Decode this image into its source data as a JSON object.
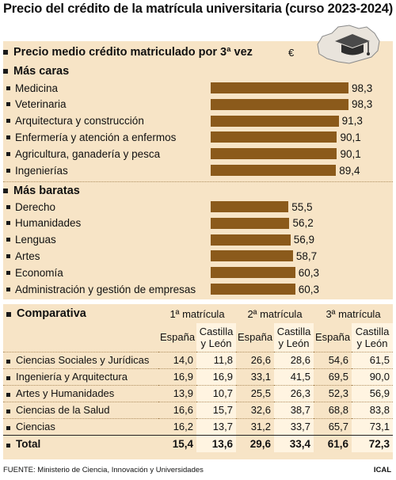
{
  "title": "Precio del crédito de la matrícula universitaria (curso 2023-2024)",
  "section_price": "Precio medio crédito matriculado por 3ª vez",
  "currency_symbol": "€",
  "group_expensive": "Más caras",
  "group_cheap": "Más baratas",
  "section_comparison": "Comparativa",
  "colors": {
    "panel": "#f7e4c6",
    "bar": "#8b5a1b",
    "highlight": "#fff4e1"
  },
  "chart_data": {
    "type": "bar",
    "orientation": "horizontal",
    "ylabel": "€",
    "xlim": [
      0,
      100
    ],
    "groups": [
      {
        "name": "Más caras",
        "categories": [
          "Medicina",
          "Veterinaria",
          "Arquitectura y construcción",
          "Enfermería y atención a enfermos",
          "Agricultura, ganadería y pesca",
          "Ingenierías"
        ],
        "values": [
          98.3,
          98.3,
          91.3,
          90.1,
          90.1,
          89.4
        ],
        "labels": [
          "98,3",
          "98,3",
          "91,3",
          "90,1",
          "90,1",
          "89,4"
        ]
      },
      {
        "name": "Más baratas",
        "categories": [
          "Derecho",
          "Humanidades",
          "Lenguas",
          "Artes",
          "Economía",
          "Administración y gestión de empresas"
        ],
        "values": [
          55.5,
          56.2,
          56.9,
          58.7,
          60.3,
          60.3
        ],
        "labels": [
          "55,5",
          "56,2",
          "56,9",
          "58,7",
          "60,3",
          "60,3"
        ]
      }
    ]
  },
  "comparison": {
    "periods": [
      "1ª matrícula",
      "2ª matrícula",
      "3ª matrícula"
    ],
    "col_spain": "España",
    "col_cyl_line1": "Castilla",
    "col_cyl_line2": "y León",
    "rows": [
      {
        "label": "Ciencias Sociales y Jurídicas",
        "values": [
          "14,0",
          "11,8",
          "26,6",
          "28,6",
          "54,6",
          "61,5"
        ]
      },
      {
        "label": "Ingeniería y Arquitectura",
        "values": [
          "16,9",
          "16,9",
          "33,1",
          "41,5",
          "69,5",
          "90,0"
        ]
      },
      {
        "label": "Artes y Humanidades",
        "values": [
          "13,9",
          "10,7",
          "25,5",
          "26,3",
          "52,3",
          "56,9"
        ]
      },
      {
        "label": "Ciencias de la Salud",
        "values": [
          "16,6",
          "15,7",
          "32,6",
          "38,7",
          "68,8",
          "83,8"
        ]
      },
      {
        "label": "Ciencias",
        "values": [
          "16,2",
          "13,7",
          "31,2",
          "33,7",
          "65,7",
          "73,1"
        ]
      }
    ],
    "total": {
      "label": "Total",
      "values": [
        "15,4",
        "13,6",
        "29,6",
        "33,4",
        "61,6",
        "72,3"
      ]
    }
  },
  "footer": "FUENTE: Ministerio de Ciencia, Innovación y Universidades",
  "credit": "ICAL"
}
